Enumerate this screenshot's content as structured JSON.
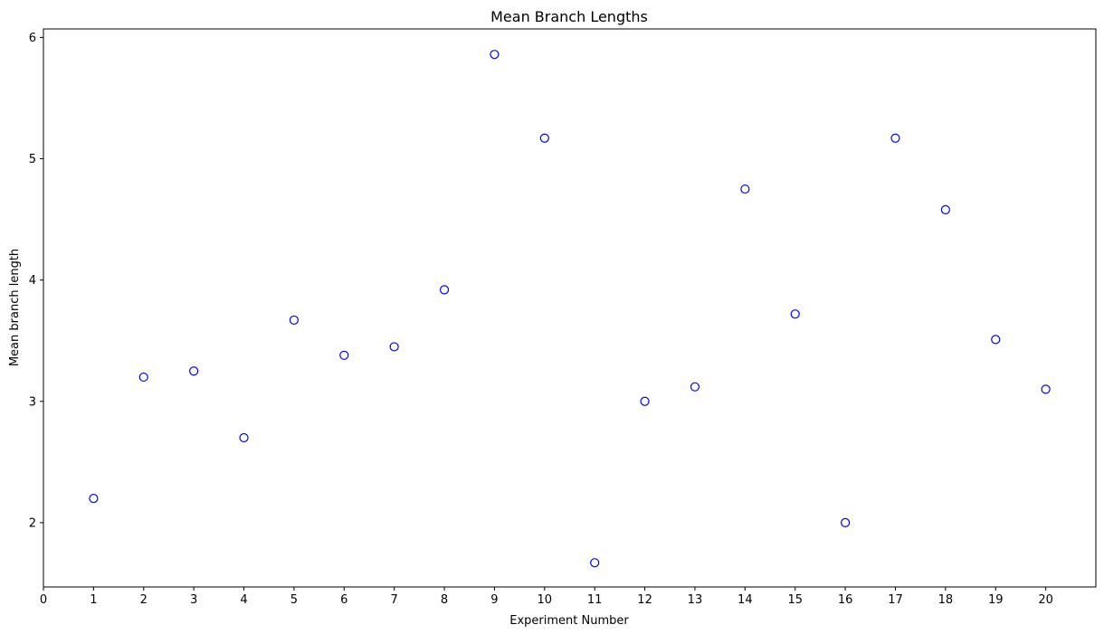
{
  "chart_data": {
    "type": "scatter",
    "title": "Mean Branch Lengths",
    "xlabel": "Experiment Number",
    "ylabel": "Mean branch length",
    "xlim": [
      0,
      21
    ],
    "ylim": [
      1.47,
      6.07
    ],
    "x_ticks": [
      0,
      1,
      2,
      3,
      4,
      5,
      6,
      7,
      8,
      9,
      10,
      11,
      12,
      13,
      14,
      15,
      16,
      17,
      18,
      19,
      20
    ],
    "y_ticks": [
      2,
      3,
      4,
      5,
      6
    ],
    "grid": false,
    "marker": "hollow-circle",
    "marker_color": "#0000ff",
    "series": [
      {
        "name": "Mean branch length",
        "x": [
          1,
          2,
          3,
          4,
          5,
          6,
          7,
          8,
          9,
          10,
          11,
          12,
          13,
          14,
          15,
          16,
          17,
          18,
          19,
          20
        ],
        "y": [
          2.2,
          3.2,
          3.25,
          2.7,
          3.67,
          3.38,
          3.45,
          3.92,
          5.86,
          5.17,
          1.67,
          3.0,
          3.12,
          4.75,
          3.72,
          2.0,
          5.17,
          4.58,
          3.51,
          3.1
        ]
      }
    ]
  }
}
